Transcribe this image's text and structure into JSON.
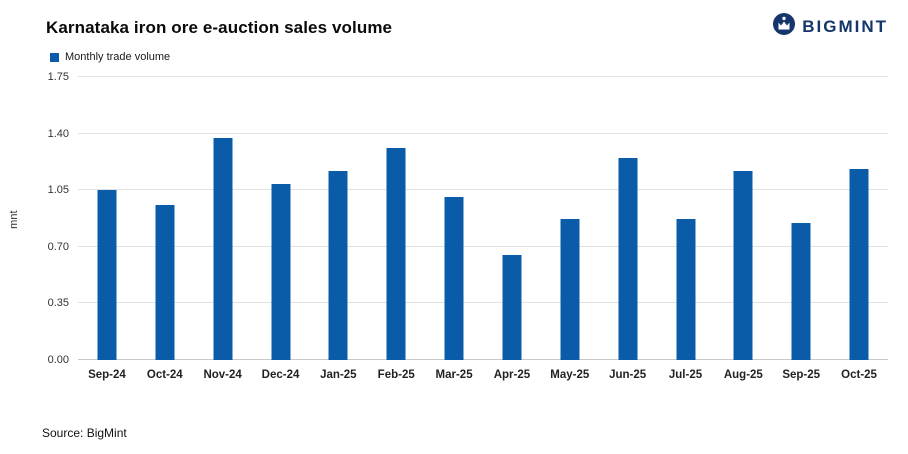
{
  "brand": {
    "name": "BIGMINT"
  },
  "chart_data": {
    "type": "bar",
    "title": "Karnataka iron ore e-auction sales volume",
    "legend": [
      "Monthly trade volume"
    ],
    "categories": [
      "Sep-24",
      "Oct-24",
      "Nov-24",
      "Dec-24",
      "Jan-25",
      "Feb-25",
      "Mar-25",
      "Apr-25",
      "May-25",
      "Jun-25",
      "Jul-25",
      "Aug-25",
      "Sep-25",
      "Oct-25"
    ],
    "values": [
      1.05,
      0.96,
      1.37,
      1.09,
      1.17,
      1.31,
      1.01,
      0.65,
      0.87,
      1.25,
      0.87,
      1.17,
      0.85,
      1.18
    ],
    "xlabel": "",
    "ylabel": "mnt",
    "ylim": [
      0,
      1.75
    ],
    "yticks": [
      "0.00",
      "0.35",
      "0.70",
      "1.05",
      "1.40",
      "1.75"
    ],
    "grid": true,
    "legend_position": "top-left",
    "bar_color": "#0b5ca8",
    "source": "Source: BigMint"
  }
}
